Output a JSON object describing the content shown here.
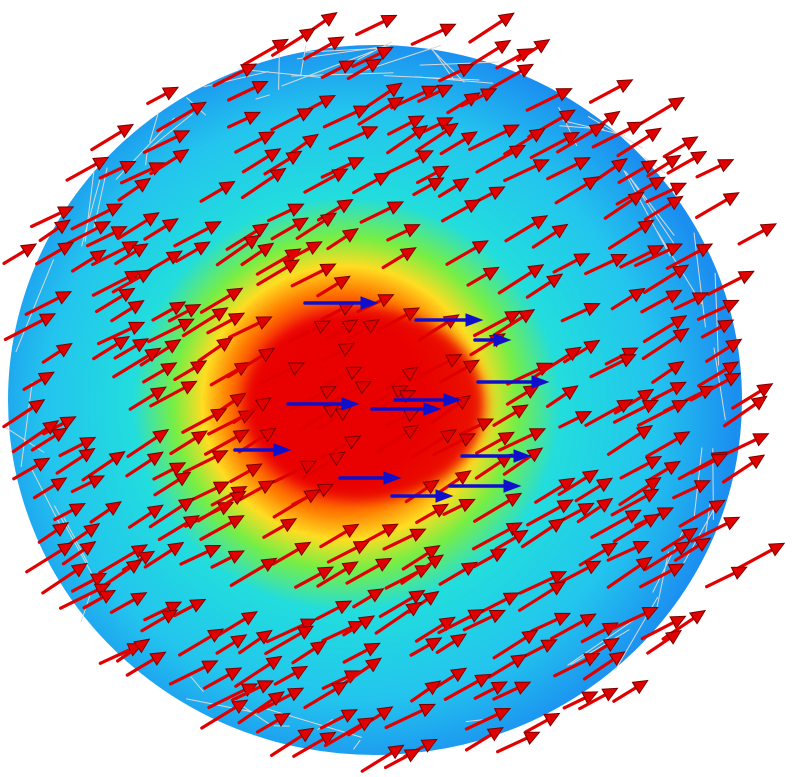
{
  "figure": {
    "kind": "vector-field-visualization",
    "background_color": "#ffffff",
    "disk_colormap": [
      "#ff0000",
      "#ffaa00",
      "#ffff33",
      "#66ee44",
      "#22dddd",
      "#1e9ef0"
    ],
    "mesh_line_color": "#d8d8d8",
    "outer_arrow_color": "#e00000",
    "outer_arrow_dark_color": "#7a0000",
    "inner_arrow_color": "#1010cc",
    "arrow_direction": "up-right",
    "inner_arrow_direction": "right"
  }
}
